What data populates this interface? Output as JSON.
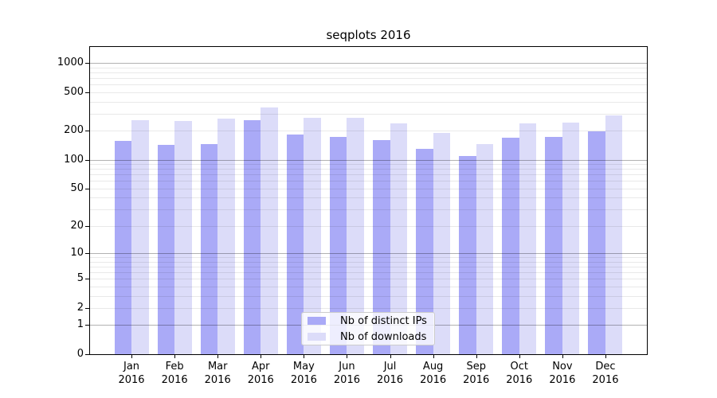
{
  "figure": {
    "background": "#ffffff"
  },
  "chart_data": {
    "type": "bar",
    "title": "seqplots 2016",
    "categories": [
      {
        "month": "Jan",
        "year": "2016"
      },
      {
        "month": "Feb",
        "year": "2016"
      },
      {
        "month": "Mar",
        "year": "2016"
      },
      {
        "month": "Apr",
        "year": "2016"
      },
      {
        "month": "May",
        "year": "2016"
      },
      {
        "month": "Jun",
        "year": "2016"
      },
      {
        "month": "Jul",
        "year": "2016"
      },
      {
        "month": "Aug",
        "year": "2016"
      },
      {
        "month": "Sep",
        "year": "2016"
      },
      {
        "month": "Oct",
        "year": "2016"
      },
      {
        "month": "Nov",
        "year": "2016"
      },
      {
        "month": "Dec",
        "year": "2016"
      }
    ],
    "series": [
      {
        "name": "Nb of distinct IPs",
        "color": "#aaaaf7",
        "values": [
          156,
          143,
          145,
          256,
          182,
          173,
          160,
          131,
          109,
          169,
          174,
          197
        ]
      },
      {
        "name": "Nb of downloads",
        "color": "#dcdcf9",
        "values": [
          258,
          251,
          269,
          350,
          272,
          272,
          240,
          191,
          145,
          240,
          243,
          288
        ]
      }
    ],
    "y_axis": {
      "scale": "log1p",
      "tick_values": [
        1000,
        500,
        200,
        100,
        50,
        20,
        10,
        5,
        2,
        1,
        0
      ],
      "tick_labels": [
        "1000",
        "500",
        "200",
        "100",
        "50",
        "20",
        "10",
        "5",
        "2",
        "1",
        "0"
      ],
      "ylim": [
        0,
        1468
      ]
    },
    "grid": {
      "major_values": [
        1,
        10,
        100,
        1000
      ],
      "minor_values": [
        2,
        3,
        4,
        5,
        6,
        7,
        8,
        9,
        20,
        30,
        40,
        50,
        60,
        70,
        80,
        90,
        200,
        300,
        400,
        500,
        600,
        700,
        800,
        900
      ]
    },
    "legend_position": "lower center"
  },
  "legend": {
    "items": [
      {
        "label": "Nb of distinct IPs",
        "color": "#aaaaf7"
      },
      {
        "label": "Nb of downloads",
        "color": "#dcdcf9"
      }
    ]
  }
}
